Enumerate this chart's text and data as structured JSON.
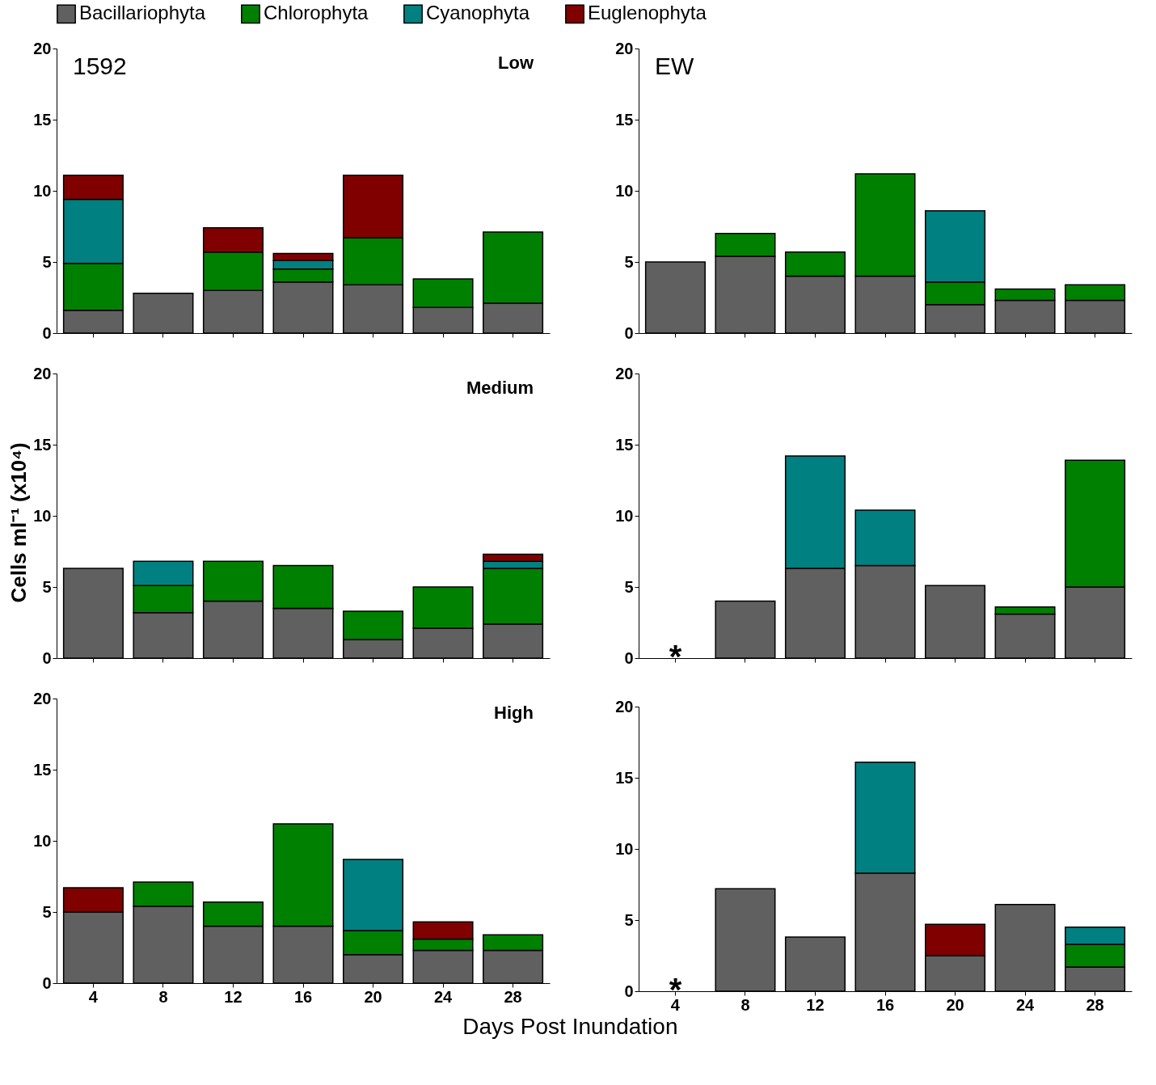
{
  "chart_data": [
    {
      "type": "bar",
      "stacked": true,
      "legend": "top",
      "categories": [
        "4",
        "8",
        "12",
        "16",
        "20",
        "24",
        "28"
      ],
      "ylim": [
        0,
        20
      ],
      "yticks": [
        0,
        5,
        10,
        15,
        20
      ],
      "grid": false,
      "tick_labels": "y",
      "annotations": [
        "1592",
        "Low"
      ],
      "series": [
        {
          "name": "Bacillariophyta",
          "color": "#606060",
          "values": [
            1.6,
            2.8,
            3.0,
            3.6,
            3.4,
            1.8,
            2.1
          ]
        },
        {
          "name": "Chlorophyta",
          "color": "#008000",
          "values": [
            3.3,
            null,
            2.7,
            0.9,
            3.3,
            2.0,
            5.0
          ]
        },
        {
          "name": "Cyanophyta",
          "color": "#008080",
          "values": [
            4.5,
            null,
            null,
            0.6,
            null,
            null,
            null
          ]
        },
        {
          "name": "Euglenophyta",
          "color": "#800000",
          "values": [
            1.7,
            null,
            1.7,
            0.5,
            4.4,
            null,
            null
          ]
        }
      ]
    },
    {
      "type": "bar",
      "stacked": true,
      "categories": [
        "4",
        "8",
        "12",
        "16",
        "20",
        "24",
        "28"
      ],
      "ylim": [
        0,
        20
      ],
      "yticks": [
        0,
        5,
        10,
        15,
        20
      ],
      "grid": false,
      "tick_labels": "y",
      "annotations": [
        "EW"
      ],
      "series": [
        {
          "name": "Bacillariophyta",
          "color": "#606060",
          "values": [
            5.0,
            5.4,
            4.0,
            4.0,
            2.0,
            2.3,
            2.3
          ]
        },
        {
          "name": "Chlorophyta",
          "color": "#008000",
          "values": [
            null,
            1.6,
            1.7,
            7.2,
            1.6,
            0.8,
            1.1
          ]
        },
        {
          "name": "Cyanophyta",
          "color": "#008080",
          "values": [
            null,
            null,
            null,
            null,
            5.0,
            null,
            null
          ]
        }
      ]
    },
    {
      "type": "bar",
      "stacked": true,
      "categories": [
        "4",
        "8",
        "12",
        "16",
        "20",
        "24",
        "28"
      ],
      "ylim": [
        0,
        20
      ],
      "yticks": [
        0,
        5,
        10,
        15,
        20
      ],
      "grid": false,
      "tick_labels": "y",
      "ylabel": "Cells ml⁻¹ (x10⁴)",
      "annotations": [
        "Medium"
      ],
      "series": [
        {
          "name": "Bacillariophyta",
          "color": "#606060",
          "values": [
            6.3,
            3.2,
            4.0,
            3.5,
            1.3,
            2.1,
            2.4
          ]
        },
        {
          "name": "Chlorophyta",
          "color": "#008000",
          "values": [
            null,
            1.9,
            2.8,
            3.0,
            2.0,
            2.9,
            3.9
          ]
        },
        {
          "name": "Cyanophyta",
          "color": "#008080",
          "values": [
            null,
            1.7,
            null,
            null,
            null,
            null,
            0.5
          ]
        },
        {
          "name": "Euglenophyta",
          "color": "#800000",
          "values": [
            null,
            null,
            null,
            null,
            null,
            null,
            0.5
          ]
        }
      ]
    },
    {
      "type": "bar",
      "stacked": true,
      "categories": [
        "4",
        "8",
        "12",
        "16",
        "20",
        "24",
        "28"
      ],
      "ylim": [
        0,
        20
      ],
      "yticks": [
        0,
        5,
        10,
        15,
        20
      ],
      "grid": false,
      "tick_labels": "y",
      "annotations": [
        "*"
      ],
      "series": [
        {
          "name": "Bacillariophyta",
          "color": "#606060",
          "values": [
            null,
            4.0,
            6.3,
            6.5,
            5.1,
            3.1,
            5.0
          ]
        },
        {
          "name": "Chlorophyta",
          "color": "#008000",
          "values": [
            null,
            null,
            null,
            null,
            null,
            0.5,
            8.9
          ]
        },
        {
          "name": "Cyanophyta",
          "color": "#008080",
          "values": [
            null,
            null,
            7.9,
            3.9,
            null,
            null,
            null
          ]
        }
      ]
    },
    {
      "type": "bar",
      "stacked": true,
      "categories": [
        "4",
        "8",
        "12",
        "16",
        "20",
        "24",
        "28"
      ],
      "ylim": [
        0,
        20
      ],
      "yticks": [
        0,
        5,
        10,
        15,
        20
      ],
      "grid": false,
      "xlabel": "Days Post Inundation",
      "annotations": [
        "High"
      ],
      "series": [
        {
          "name": "Bacillariophyta",
          "color": "#606060",
          "values": [
            5.0,
            5.4,
            4.0,
            4.0,
            2.0,
            2.3,
            2.3
          ]
        },
        {
          "name": "Chlorophyta",
          "color": "#008000",
          "values": [
            null,
            1.7,
            1.7,
            7.2,
            1.7,
            0.8,
            1.1
          ]
        },
        {
          "name": "Cyanophyta",
          "color": "#008080",
          "values": [
            null,
            null,
            null,
            null,
            5.0,
            null,
            null
          ]
        },
        {
          "name": "Euglenophyta",
          "color": "#800000",
          "values": [
            1.7,
            null,
            null,
            null,
            null,
            1.2,
            null
          ]
        }
      ]
    },
    {
      "type": "bar",
      "stacked": true,
      "categories": [
        "4",
        "8",
        "12",
        "16",
        "20",
        "24",
        "28"
      ],
      "ylim": [
        0,
        20
      ],
      "yticks": [
        0,
        5,
        10,
        15,
        20
      ],
      "grid": false,
      "annotations": [
        "*"
      ],
      "series": [
        {
          "name": "Bacillariophyta",
          "color": "#606060",
          "values": [
            null,
            7.2,
            3.8,
            8.3,
            2.5,
            6.1,
            1.7
          ]
        },
        {
          "name": "Chlorophyta",
          "color": "#008000",
          "values": [
            null,
            null,
            null,
            null,
            null,
            null,
            1.6
          ]
        },
        {
          "name": "Cyanophyta",
          "color": "#008080",
          "values": [
            null,
            null,
            null,
            7.8,
            null,
            null,
            1.2
          ]
        },
        {
          "name": "Euglenophyta",
          "color": "#800000",
          "values": [
            null,
            null,
            null,
            null,
            2.2,
            null,
            null
          ]
        }
      ]
    }
  ]
}
